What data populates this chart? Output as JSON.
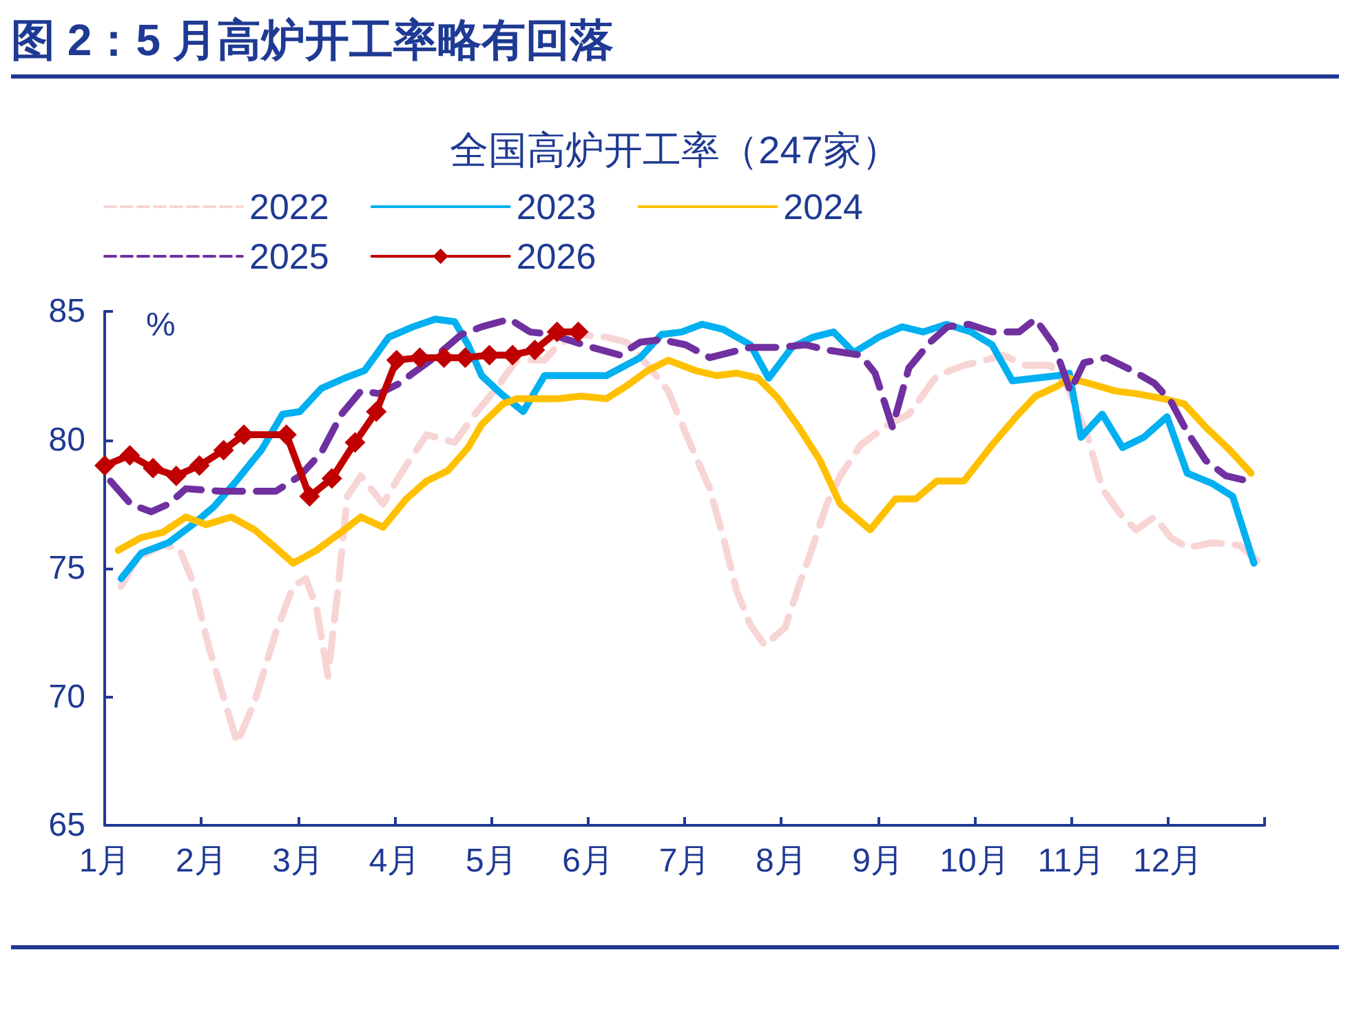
{
  "chart_data": {
    "type": "line",
    "title": "图 2：5 月高炉开工率略有回落",
    "subtitle": "全国高炉开工率（247家）",
    "ylabel": "%",
    "xlim": [
      1,
      13
    ],
    "xticks": [
      {
        "value": 1,
        "label": "1月"
      },
      {
        "value": 2,
        "label": "2月"
      },
      {
        "value": 3,
        "label": "3月"
      },
      {
        "value": 4,
        "label": "4月"
      },
      {
        "value": 5,
        "label": "5月"
      },
      {
        "value": 6,
        "label": "6月"
      },
      {
        "value": 7,
        "label": "7月"
      },
      {
        "value": 8,
        "label": "8月"
      },
      {
        "value": 9,
        "label": "9月"
      },
      {
        "value": 10,
        "label": "10月"
      },
      {
        "value": 11,
        "label": "11月"
      },
      {
        "value": 12,
        "label": "12月"
      },
      {
        "value": 13,
        "label": null
      }
    ],
    "ylim": [
      65,
      85
    ],
    "yticks": [
      65,
      70,
      75,
      80,
      85
    ],
    "grid": false,
    "legend": "top",
    "series": [
      {
        "name": "2022",
        "color": "#f8d5d5",
        "line_style": "dashed",
        "marker": "none",
        "x": [
          1.17,
          1.34,
          1.6,
          1.77,
          1.91,
          2.08,
          2.23,
          2.37,
          2.55,
          2.77,
          2.95,
          3.08,
          3.19,
          3.31,
          3.41,
          3.51,
          3.65,
          3.88,
          4.05,
          4.33,
          4.62,
          4.83,
          5.05,
          5.26,
          5.55,
          5.69,
          5.9,
          6.19,
          6.4,
          6.62,
          6.83,
          7.04,
          7.26,
          7.4,
          7.54,
          7.68,
          7.83,
          8.04,
          8.18,
          8.33,
          8.47,
          8.61,
          8.82,
          9.11,
          9.32,
          9.61,
          9.89,
          10.11,
          10.29,
          10.53,
          10.78,
          10.96,
          11.18,
          11.32,
          11.53,
          11.67,
          11.86,
          12.03,
          12.2,
          12.46,
          12.74,
          12.96
        ],
        "values": [
          74.3,
          75.4,
          75.9,
          75.8,
          74.5,
          71.9,
          70.0,
          68.2,
          69.8,
          72.5,
          74.3,
          74.6,
          73.5,
          70.8,
          74.1,
          77.8,
          78.6,
          77.5,
          78.6,
          80.2,
          79.9,
          81.0,
          82.0,
          83.1,
          83.1,
          83.7,
          84.1,
          84.0,
          83.8,
          82.9,
          81.9,
          80.0,
          78.1,
          76.2,
          74.1,
          72.8,
          72.0,
          72.7,
          74.3,
          75.9,
          77.5,
          78.6,
          79.8,
          80.6,
          81.0,
          82.5,
          82.9,
          83.1,
          83.3,
          82.9,
          82.9,
          82.1,
          80.0,
          78.1,
          77.0,
          76.5,
          77.0,
          76.2,
          75.8,
          76.0,
          75.9,
          75.2
        ]
      },
      {
        "name": "2023",
        "color": "#00b0f0",
        "line_style": "solid",
        "marker": "none",
        "x": [
          1.17,
          1.38,
          1.66,
          1.91,
          2.13,
          2.34,
          2.62,
          2.84,
          3.02,
          3.24,
          3.48,
          3.69,
          3.94,
          4.19,
          4.42,
          4.62,
          4.76,
          4.9,
          5.1,
          5.33,
          5.55,
          6.19,
          6.54,
          6.76,
          6.97,
          7.18,
          7.4,
          7.68,
          7.87,
          8.11,
          8.33,
          8.54,
          8.75,
          9.01,
          9.25,
          9.47,
          9.71,
          9.96,
          10.18,
          10.39,
          10.86,
          10.98,
          11.1,
          11.32,
          11.53,
          11.75,
          11.99,
          12.2,
          12.46,
          12.67,
          12.89
        ],
        "values": [
          74.6,
          75.6,
          76.0,
          76.7,
          77.4,
          78.3,
          79.6,
          81.0,
          81.1,
          82.0,
          82.4,
          82.7,
          84.0,
          84.4,
          84.7,
          84.6,
          83.7,
          82.5,
          81.8,
          81.1,
          82.5,
          82.5,
          83.2,
          84.1,
          84.2,
          84.5,
          84.3,
          83.7,
          82.4,
          83.6,
          84.0,
          84.2,
          83.4,
          84.0,
          84.4,
          84.2,
          84.5,
          84.2,
          83.7,
          82.3,
          82.5,
          82.6,
          80.1,
          81.0,
          79.7,
          80.1,
          80.9,
          78.7,
          78.3,
          77.8,
          75.2
        ]
      },
      {
        "name": "2024",
        "color": "#ffc000",
        "line_style": "solid",
        "marker": "none",
        "x": [
          1.14,
          1.38,
          1.6,
          1.84,
          2.05,
          2.31,
          2.55,
          2.77,
          2.95,
          3.19,
          3.48,
          3.65,
          3.88,
          4.12,
          4.33,
          4.55,
          4.76,
          4.9,
          5.12,
          5.26,
          5.69,
          5.93,
          6.19,
          6.4,
          6.62,
          6.83,
          7.11,
          7.33,
          7.54,
          7.76,
          7.97,
          8.18,
          8.4,
          8.61,
          8.92,
          9.18,
          9.39,
          9.61,
          9.89,
          10.18,
          10.43,
          10.63,
          10.86,
          10.98,
          11.18,
          11.46,
          11.67,
          11.96,
          12.17,
          12.39,
          12.64,
          12.86
        ],
        "values": [
          75.7,
          76.2,
          76.4,
          77.0,
          76.7,
          77.0,
          76.5,
          75.8,
          75.2,
          75.7,
          76.5,
          77.0,
          76.6,
          77.7,
          78.4,
          78.8,
          79.7,
          80.6,
          81.4,
          81.6,
          81.6,
          81.7,
          81.6,
          82.1,
          82.7,
          83.1,
          82.7,
          82.5,
          82.6,
          82.4,
          81.6,
          80.5,
          79.2,
          77.5,
          76.5,
          77.7,
          77.7,
          78.4,
          78.4,
          79.8,
          80.9,
          81.7,
          82.1,
          82.4,
          82.2,
          81.9,
          81.8,
          81.6,
          81.4,
          80.5,
          79.6,
          78.7
        ]
      },
      {
        "name": "2025",
        "color": "#7030a0",
        "line_style": "dashed",
        "marker": "none",
        "x": [
          1.06,
          1.27,
          1.48,
          1.66,
          1.84,
          2.2,
          2.48,
          2.77,
          3.02,
          3.24,
          3.45,
          3.65,
          3.84,
          4.05,
          4.19,
          4.41,
          4.69,
          4.9,
          5.19,
          5.4,
          5.62,
          6.04,
          6.33,
          6.54,
          6.76,
          7.01,
          7.26,
          7.47,
          7.68,
          7.97,
          8.25,
          8.47,
          8.82,
          8.97,
          9.15,
          9.32,
          9.54,
          9.72,
          9.94,
          10.18,
          10.46,
          10.63,
          10.82,
          10.99,
          11.13,
          11.36,
          11.63,
          11.86,
          12.03,
          12.2,
          12.39,
          12.6,
          12.83
        ],
        "values": [
          78.4,
          77.5,
          77.2,
          77.5,
          78.1,
          78.0,
          78.0,
          78.0,
          78.6,
          79.5,
          81.0,
          81.9,
          81.8,
          82.2,
          82.6,
          83.2,
          84.1,
          84.4,
          84.7,
          84.2,
          84.1,
          83.6,
          83.3,
          83.8,
          83.9,
          83.7,
          83.2,
          83.4,
          83.6,
          83.6,
          83.7,
          83.5,
          83.3,
          82.6,
          80.5,
          82.8,
          83.8,
          84.4,
          84.5,
          84.2,
          84.2,
          84.7,
          83.7,
          81.9,
          83.0,
          83.2,
          82.7,
          82.2,
          81.5,
          80.3,
          79.2,
          78.6,
          78.4
        ]
      },
      {
        "name": "2026",
        "color": "#c00000",
        "line_style": "solid",
        "marker": "diamond",
        "x": [
          1.0,
          1.26,
          1.5,
          1.74,
          1.98,
          2.23,
          2.44,
          2.88,
          3.12,
          3.35,
          3.59,
          3.81,
          4.02,
          4.26,
          4.51,
          4.73,
          4.98,
          5.22,
          5.45,
          5.68,
          5.9
        ],
        "values": [
          79.0,
          79.4,
          78.9,
          78.6,
          79.0,
          79.6,
          80.2,
          80.2,
          77.8,
          78.5,
          79.9,
          81.1,
          83.1,
          83.2,
          83.2,
          83.2,
          83.3,
          83.3,
          83.5,
          84.2,
          84.2
        ]
      }
    ]
  }
}
